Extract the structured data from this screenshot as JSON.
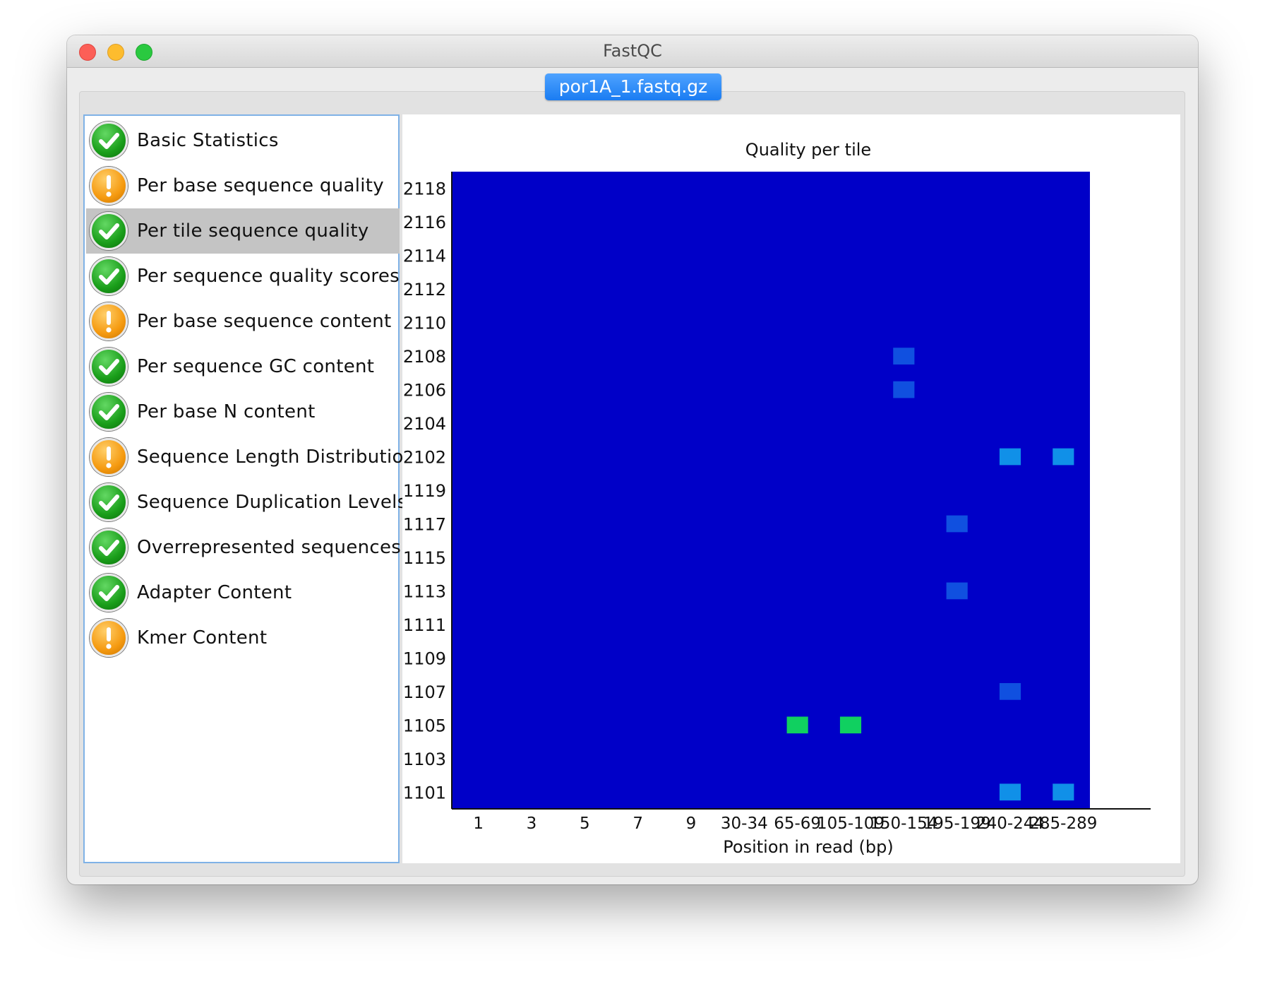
{
  "window": {
    "title": "FastQC"
  },
  "tab": {
    "label": "por1A_1.fastq.gz"
  },
  "modules": [
    {
      "label": "Basic Statistics",
      "status": "pass",
      "icon": "check-icon"
    },
    {
      "label": "Per base sequence quality",
      "status": "warn",
      "icon": "warning-icon"
    },
    {
      "label": "Per tile sequence quality",
      "status": "pass",
      "icon": "check-icon",
      "selected": true
    },
    {
      "label": "Per sequence quality scores",
      "status": "pass",
      "icon": "check-icon"
    },
    {
      "label": "Per base sequence content",
      "status": "warn",
      "icon": "warning-icon"
    },
    {
      "label": "Per sequence GC content",
      "status": "pass",
      "icon": "check-icon"
    },
    {
      "label": "Per base N content",
      "status": "pass",
      "icon": "check-icon"
    },
    {
      "label": "Sequence Length Distribution",
      "status": "warn",
      "icon": "warning-icon"
    },
    {
      "label": "Sequence Duplication Levels",
      "status": "pass",
      "icon": "check-icon"
    },
    {
      "label": "Overrepresented sequences",
      "status": "pass",
      "icon": "check-icon"
    },
    {
      "label": "Adapter Content",
      "status": "pass",
      "icon": "check-icon"
    },
    {
      "label": "Kmer Content",
      "status": "warn",
      "icon": "warning-icon"
    }
  ],
  "chart_data": {
    "type": "heatmap",
    "title": "Quality per tile",
    "xlabel": "Position in read (bp)",
    "x_tick_labels": [
      "1",
      "3",
      "5",
      "7",
      "9",
      "30-34",
      "65-69",
      "105-109",
      "150-154",
      "195-199",
      "240-244",
      "285-289"
    ],
    "y_tick_labels": [
      "2118",
      "2116",
      "2114",
      "2112",
      "2110",
      "2108",
      "2106",
      "2104",
      "2102",
      "1119",
      "1117",
      "1115",
      "1113",
      "1111",
      "1109",
      "1107",
      "1105",
      "1103",
      "1101"
    ],
    "colors": {
      "base": "#0000c8",
      "mid": "#1050e0",
      "high": "#1090e8",
      "hot": "#10d060"
    },
    "highlights": [
      {
        "tile": "1105",
        "position": "65-69",
        "level": "hot"
      },
      {
        "tile": "1105",
        "position": "105-109",
        "level": "hot"
      },
      {
        "tile": "2102",
        "position": "240-244",
        "level": "high"
      },
      {
        "tile": "2102",
        "position": "285-289",
        "level": "high"
      },
      {
        "tile": "1101",
        "position": "240-244",
        "level": "high"
      },
      {
        "tile": "1101",
        "position": "285-289",
        "level": "high"
      },
      {
        "tile": "1107",
        "position": "240-244",
        "level": "mid"
      },
      {
        "tile": "1117",
        "position": "195-199",
        "level": "mid"
      },
      {
        "tile": "2106",
        "position": "150-154",
        "level": "mid"
      },
      {
        "tile": "2108",
        "position": "150-154",
        "level": "mid"
      },
      {
        "tile": "1113",
        "position": "195-199",
        "level": "mid"
      }
    ]
  }
}
